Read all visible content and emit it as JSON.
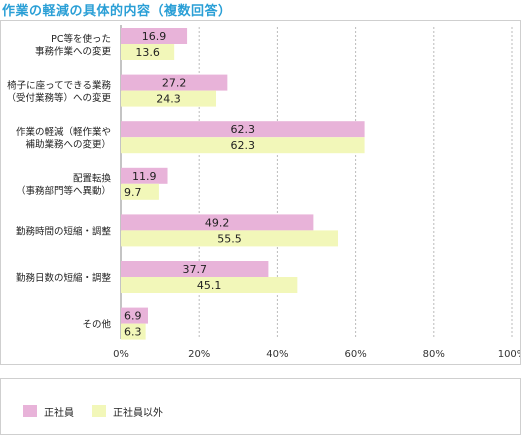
{
  "title": "作業の軽減の具体的内容（複数回答）",
  "colors": {
    "series1": "#e8b3d9",
    "series2": "#f2f7b9",
    "title": "#2a9fd6",
    "grid": "#bbbbbb"
  },
  "legend": [
    {
      "label": "正社員",
      "color": "#e8b3d9"
    },
    {
      "label": "正社員以外",
      "color": "#f2f7b9"
    }
  ],
  "chart_data": {
    "type": "bar",
    "orientation": "horizontal",
    "categories": [
      [
        "PC等を使った",
        "事務作業への変更"
      ],
      [
        "椅子に座ってできる業務",
        "（受付業務等）への変更"
      ],
      [
        "作業の軽減（軽作業や",
        "補助業務への変更）"
      ],
      [
        "配置転換",
        "（事務部門等へ異動）"
      ],
      [
        "勤務時間の短縮・調整"
      ],
      [
        "勤務日数の短縮・調整"
      ],
      [
        "その他"
      ]
    ],
    "series": [
      {
        "name": "正社員",
        "values": [
          16.9,
          27.2,
          62.3,
          11.9,
          49.2,
          37.7,
          6.9
        ]
      },
      {
        "name": "正社員以外",
        "values": [
          13.6,
          24.3,
          62.3,
          9.7,
          55.5,
          45.1,
          6.3
        ]
      }
    ],
    "xlim": [
      0,
      100
    ],
    "xticks": [
      "0%",
      "20%",
      "40%",
      "60%",
      "80%",
      "100%"
    ],
    "grid": true,
    "legend_position": "bottom"
  }
}
